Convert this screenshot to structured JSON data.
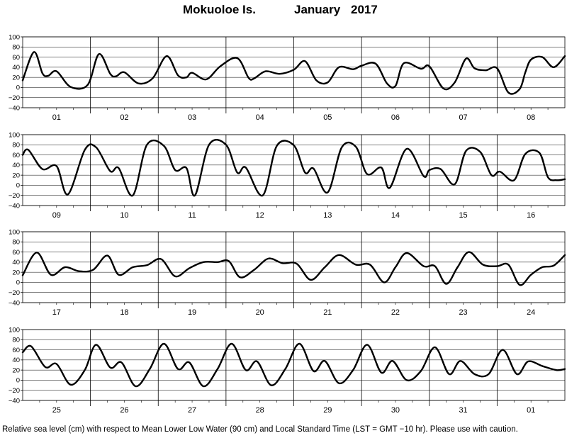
{
  "header": {
    "station": "Mokuoloe Is.",
    "month": "January",
    "year": "2017"
  },
  "footer": {
    "note": "Relative sea level (cm) with respect to Mean Lower Low Water (90 cm) and Local Standard Time (LST = GMT −10 hr). Please use with caution."
  },
  "colors": {
    "line": "#000000",
    "grid": "#000000",
    "background": "#ffffff"
  },
  "chart_data": {
    "type": "line",
    "ylim": [
      -40,
      100
    ],
    "yticks": [
      "100",
      "80",
      "60",
      "40",
      "20",
      "0",
      "−20",
      "−40"
    ],
    "ytick_values": [
      100,
      80,
      60,
      40,
      20,
      0,
      -20,
      -40
    ],
    "x_unit": "hours since start of panel (each day = 24 h)",
    "panels": [
      {
        "days": [
          "01",
          "02",
          "03",
          "04",
          "05",
          "06",
          "07",
          "08"
        ],
        "series": [
          {
            "x": [
              0,
              4,
              7,
              9,
              12,
              17,
              23,
              27,
              31,
              33,
              36,
              41,
              46,
              51,
              55,
              58,
              60,
              65,
              70,
              76,
              80,
              82,
              86,
              91,
              96,
              100,
              104,
              108,
              112,
              117,
              120,
              125,
              129,
              132,
              135,
              141,
              144,
              149,
              153,
              157,
              160,
              164,
              168,
              172,
              176,
              178,
              180,
              184,
              188,
              192
            ],
            "y": [
              14,
              70,
              28,
              23,
              32,
              1,
              5,
              66,
              27,
              22,
              30,
              8,
              18,
              62,
              24,
              20,
              29,
              16,
              42,
              58,
              19,
              18,
              32,
              27,
              35,
              52,
              14,
              10,
              40,
              36,
              43,
              47,
              8,
              3,
              48,
              37,
              42,
              -2,
              10,
              57,
              38,
              34,
              38,
              -10,
              -3,
              30,
              55,
              60,
              40,
              62
            ]
          }
        ]
      },
      {
        "days": [
          "09",
          "10",
          "11",
          "12",
          "13",
          "14",
          "15",
          "16"
        ],
        "series": [
          {
            "x": [
              0,
              2,
              7,
              12,
              16,
              22,
              26,
              31,
              34,
              39,
              44,
              50,
              54,
              58,
              61,
              66,
              72,
              76,
              79,
              85,
              90,
              96,
              100,
              103,
              108,
              113,
              118,
              122,
              127,
              130,
              136,
              142,
              144,
              148,
              153,
              157,
              162,
              166,
              169,
              174,
              178,
              183,
              186,
              189,
              192
            ],
            "y": [
              60,
              70,
              32,
              38,
              -18,
              70,
              75,
              28,
              34,
              -20,
              80,
              78,
              30,
              34,
              -20,
              80,
              80,
              25,
              35,
              -20,
              78,
              79,
              25,
              33,
              -14,
              75,
              76,
              22,
              35,
              -5,
              72,
              18,
              30,
              32,
              2,
              68,
              66,
              20,
              27,
              10,
              62,
              64,
              16,
              10,
              12
            ]
          }
        ]
      },
      {
        "days": [
          "17",
          "18",
          "19",
          "20",
          "21",
          "22",
          "23",
          "24"
        ],
        "series": [
          {
            "x": [
              0,
              5,
              10,
              15,
              20,
              25,
              30,
              34,
              39,
              44,
              49,
              54,
              59,
              64,
              69,
              73,
              77,
              82,
              87,
              92,
              97,
              102,
              107,
              112,
              118,
              123,
              128,
              132,
              136,
              142,
              146,
              150,
              154,
              158,
              163,
              168,
              172,
              176,
              180,
              184,
              188,
              192
            ],
            "y": [
              14,
              59,
              15,
              30,
              22,
              25,
              53,
              15,
              30,
              34,
              46,
              12,
              28,
              40,
              40,
              42,
              10,
              25,
              47,
              38,
              37,
              5,
              30,
              54,
              35,
              35,
              0,
              30,
              58,
              32,
              32,
              -3,
              30,
              60,
              35,
              32,
              35,
              -5,
              15,
              30,
              33,
              54
            ]
          }
        ]
      },
      {
        "days": [
          "25",
          "26",
          "27",
          "28",
          "29",
          "30",
          "31",
          "01"
        ],
        "series": [
          {
            "x": [
              0,
              3,
              8,
              12,
              17,
              22,
              26,
              31,
              35,
              40,
              45,
              50,
              55,
              59,
              64,
              69,
              74,
              79,
              83,
              88,
              93,
              98,
              103,
              107,
              112,
              117,
              122,
              127,
              131,
              136,
              141,
              146,
              151,
              155,
              160,
              165,
              170,
              175,
              179,
              184,
              189,
              192
            ],
            "y": [
              55,
              67,
              26,
              32,
              -9,
              20,
              70,
              25,
              35,
              -12,
              22,
              72,
              22,
              35,
              -12,
              22,
              72,
              20,
              37,
              -10,
              22,
              72,
              18,
              38,
              -6,
              20,
              70,
              15,
              38,
              0,
              18,
              65,
              12,
              38,
              12,
              12,
              60,
              12,
              37,
              28,
              20,
              22
            ]
          }
        ]
      }
    ]
  }
}
